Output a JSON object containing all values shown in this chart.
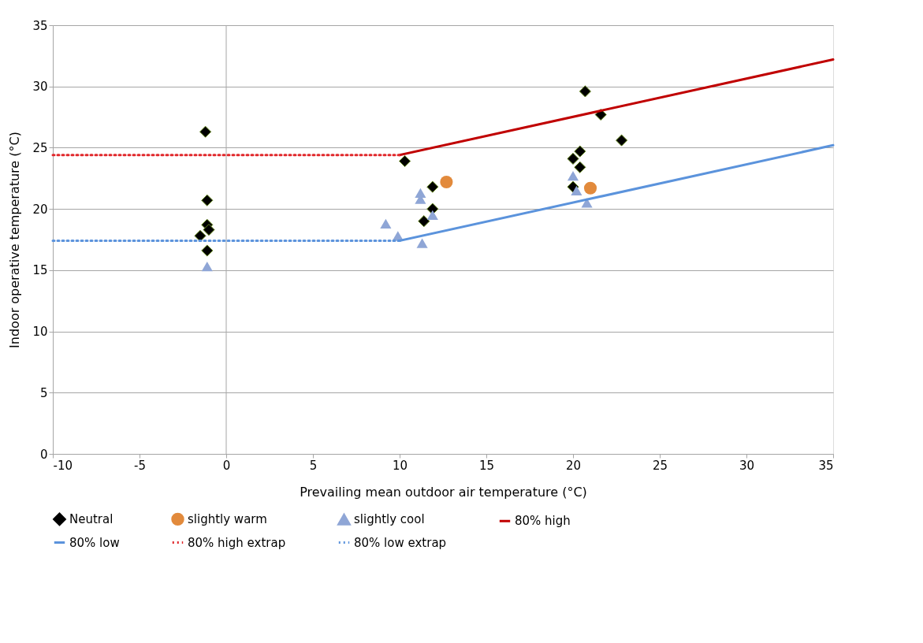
{
  "chart_data": {
    "type": "scatter",
    "xlabel": "Prevailing mean outdoor air temperature (°C)",
    "ylabel": "Indoor operative temperature (°C)",
    "xlim": [
      -10,
      35
    ],
    "xticks": [
      -10,
      -5,
      0,
      5,
      10,
      15,
      20,
      25,
      30,
      35
    ],
    "ylim": [
      0,
      35
    ],
    "yticks": [
      0,
      5,
      10,
      15,
      20,
      25,
      30,
      35
    ],
    "grid": "y",
    "legend": "bottom",
    "ref_lines": [
      {
        "axis": "x",
        "value": 0,
        "color": "#a6a6a6"
      }
    ],
    "series": [
      {
        "name": "Neutral",
        "type": "scatter",
        "marker": "diamond",
        "color": "#000000",
        "x": [
          -1.2,
          -1.1,
          -1.1,
          -1.0,
          -1.5,
          -1.1,
          10.3,
          11.9,
          11.4,
          11.9,
          20.7,
          21.6,
          22.8,
          20.4,
          20.0,
          20.4,
          20.0
        ],
        "values": [
          26.3,
          20.7,
          18.7,
          18.3,
          17.8,
          16.6,
          23.9,
          21.8,
          19.0,
          20.0,
          29.6,
          27.7,
          25.6,
          24.7,
          24.1,
          23.4,
          21.8
        ]
      },
      {
        "name": "slightly warm",
        "type": "scatter",
        "marker": "circle",
        "color": "#e28a3c",
        "x": [
          12.7,
          21.0
        ],
        "values": [
          22.2,
          21.7
        ]
      },
      {
        "name": "slightly cool",
        "type": "scatter",
        "marker": "triangle",
        "color": "#8fa6d6",
        "x": [
          -1.1,
          9.2,
          9.9,
          11.3,
          11.2,
          11.2,
          11.9,
          20.0,
          20.2,
          20.8
        ],
        "values": [
          15.3,
          18.8,
          17.8,
          17.2,
          21.3,
          20.8,
          19.5,
          22.7,
          21.5,
          20.5
        ]
      },
      {
        "name": "80% high",
        "type": "line",
        "line_style": "solid",
        "color": "#c00000",
        "x": [
          10,
          35
        ],
        "values": [
          24.4,
          32.2
        ]
      },
      {
        "name": "80% low",
        "type": "line",
        "line_style": "solid",
        "color": "#5b93dc",
        "x": [
          10,
          35
        ],
        "values": [
          17.4,
          25.2
        ]
      },
      {
        "name": "80% high extrap",
        "type": "line",
        "line_style": "dotted",
        "color": "#e0282b",
        "x": [
          -10,
          10
        ],
        "values": [
          24.4,
          24.4
        ]
      },
      {
        "name": "80% low extrap",
        "type": "line",
        "line_style": "dotted",
        "color": "#5b93dc",
        "x": [
          -10,
          10
        ],
        "values": [
          17.4,
          17.4
        ]
      }
    ]
  }
}
